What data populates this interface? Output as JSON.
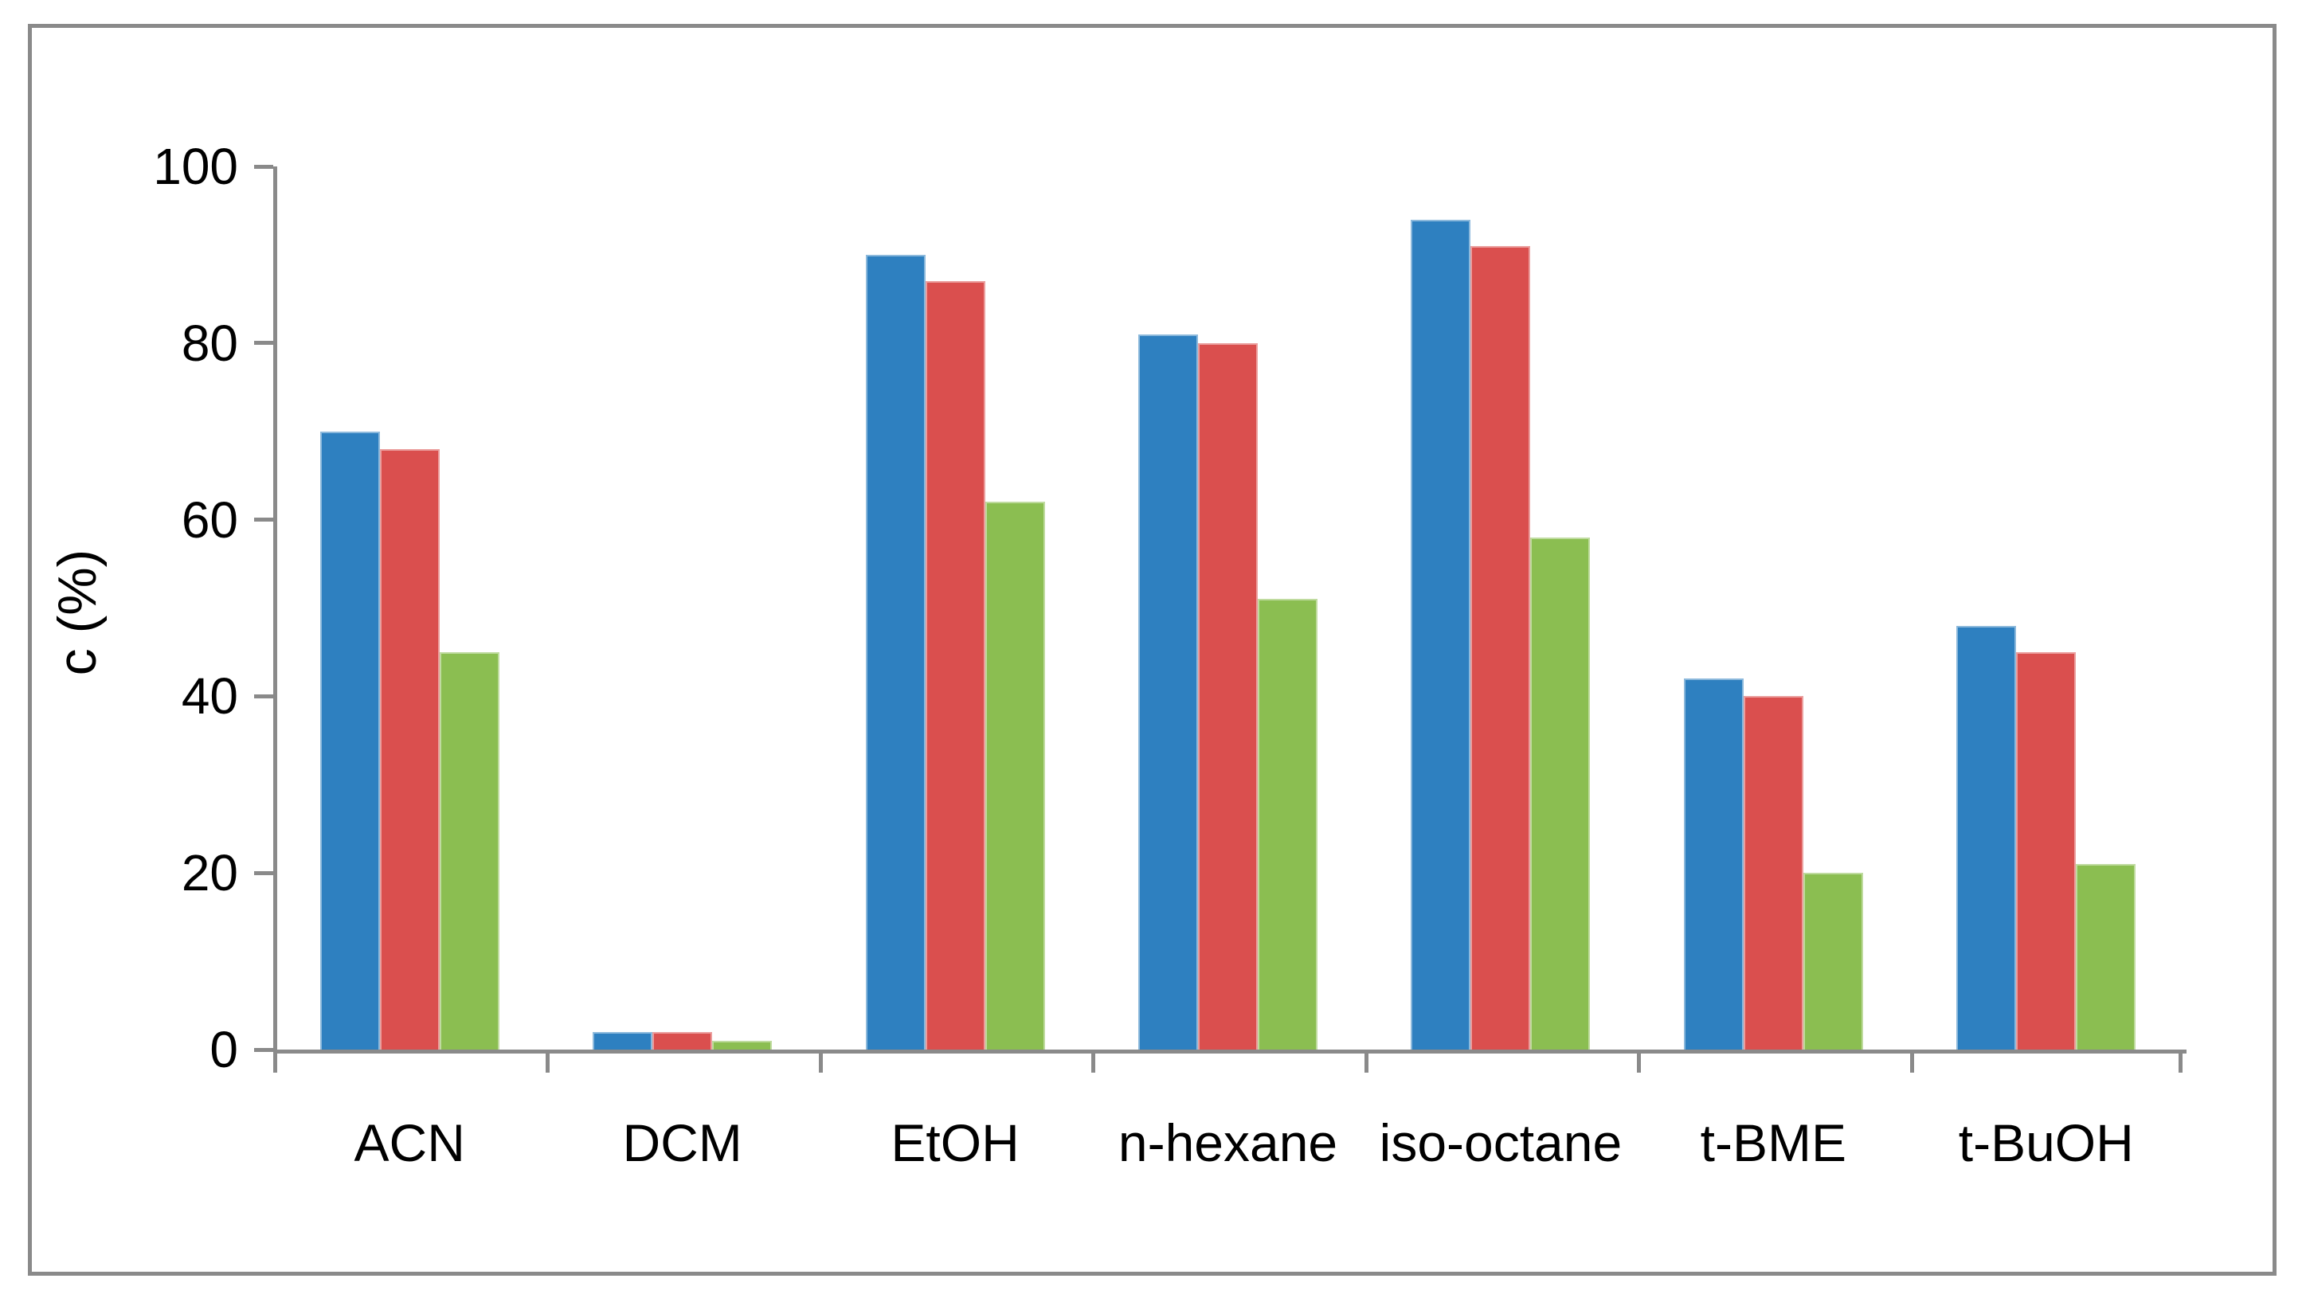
{
  "chart_data": {
    "type": "bar",
    "title": "",
    "ylabel": "c (%)",
    "xlabel": "",
    "ylim": [
      0,
      100
    ],
    "yticks": [
      0,
      20,
      40,
      60,
      80,
      100
    ],
    "grid": false,
    "legend": "none",
    "categories": [
      "ACN",
      "DCM",
      "EtOH",
      "n-hexane",
      "iso-octane",
      "t-BME",
      "t-BuOH"
    ],
    "series": [
      {
        "color": "#2E80C0",
        "values": [
          70,
          2,
          90,
          81,
          94,
          42,
          48
        ]
      },
      {
        "color": "#DA4F4E",
        "values": [
          68,
          2,
          87,
          80,
          91,
          40,
          45
        ]
      },
      {
        "color": "#8BBE51",
        "values": [
          45,
          1,
          62,
          51,
          58,
          20,
          21
        ]
      }
    ],
    "colors": {
      "axis": "#8a8a8a",
      "frame": "#8a8a8a",
      "text": "#000000",
      "background": "#ffffff"
    }
  }
}
